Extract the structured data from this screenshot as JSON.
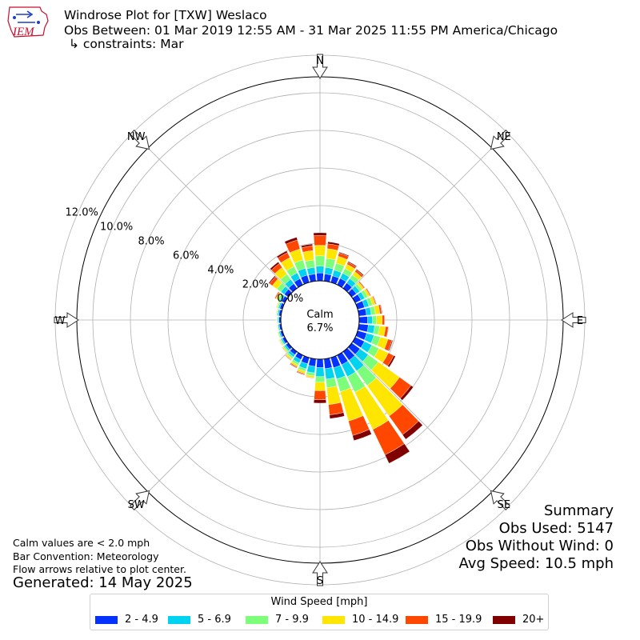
{
  "header": {
    "title": "Windrose Plot for [TXW] Weslaco",
    "subtitle": "Obs Between: 01 Mar 2019 12:55 AM - 31 Mar 2025 11:55 PM America/Chicago",
    "constraints": "↳ constraints: Mar",
    "logo_text": "IEM"
  },
  "notes": {
    "calm_note": "Calm values are < 2.0 mph",
    "bar_convention": "Bar Convention: Meteorology",
    "flow_arrows": "Flow arrows relative to plot center.",
    "generated": "Generated: 14 May 2025"
  },
  "summary": {
    "heading": "Summary",
    "obs_used": "Obs Used: 5147",
    "obs_without_wind": "Obs Without Wind: 0",
    "avg_speed": "Avg Speed: 10.5 mph"
  },
  "legend": {
    "title": "Wind Speed [mph]",
    "placement": "bottom-center"
  },
  "colors": {
    "bins": [
      "#0532ff",
      "#00d3f0",
      "#7dfe7a",
      "#ffe600",
      "#ff4700",
      "#800000"
    ],
    "grid": "#b0b0b0",
    "logo_red": "#c8102e",
    "logo_blue": "#1f3fbf"
  },
  "chart_data": {
    "type": "windrose",
    "calm": {
      "label": "Calm",
      "value": "6.7%"
    },
    "radial_ticks": [
      "0.0%",
      "2.0%",
      "4.0%",
      "6.0%",
      "8.0%",
      "10.0%",
      "12.0%"
    ],
    "radial_range": [
      0,
      12
    ],
    "compass_labels": [
      "N",
      "NE",
      "E",
      "SE",
      "S",
      "SW",
      "W",
      "NW"
    ],
    "direction_step_deg": 10,
    "bins": [
      "2 - 4.9",
      "5 - 6.9",
      "7 - 9.9",
      "10 - 14.9",
      "15 - 19.9",
      "20+"
    ],
    "series": [
      {
        "dir": 0,
        "values": [
          0.42,
          0.36,
          0.55,
          0.56,
          0.52,
          0.15
        ]
      },
      {
        "dir": 10,
        "values": [
          0.38,
          0.35,
          0.48,
          0.52,
          0.26,
          0.11
        ]
      },
      {
        "dir": 20,
        "values": [
          0.36,
          0.32,
          0.38,
          0.38,
          0.18,
          0.05
        ]
      },
      {
        "dir": 30,
        "values": [
          0.38,
          0.3,
          0.28,
          0.25,
          0.12,
          0.05
        ]
      },
      {
        "dir": 40,
        "values": [
          0.35,
          0.28,
          0.24,
          0.22,
          0.11,
          0.05
        ]
      },
      {
        "dir": 50,
        "values": [
          0.3,
          0.22,
          0.15,
          0.12,
          0.05,
          0.02
        ]
      },
      {
        "dir": 60,
        "values": [
          0.34,
          0.22,
          0.18,
          0.12,
          0.05,
          0.02
        ]
      },
      {
        "dir": 70,
        "values": [
          0.38,
          0.24,
          0.2,
          0.15,
          0.05,
          0.02
        ]
      },
      {
        "dir": 80,
        "values": [
          0.4,
          0.26,
          0.22,
          0.24,
          0.1,
          0.03
        ]
      },
      {
        "dir": 90,
        "values": [
          0.45,
          0.26,
          0.22,
          0.3,
          0.12,
          0.02
        ]
      },
      {
        "dir": 100,
        "values": [
          0.5,
          0.34,
          0.26,
          0.32,
          0.15,
          0.02
        ]
      },
      {
        "dir": 110,
        "values": [
          0.5,
          0.4,
          0.35,
          0.42,
          0.22,
          0.05
        ]
      },
      {
        "dir": 120,
        "values": [
          0.54,
          0.44,
          0.42,
          0.55,
          0.32,
          0.1
        ]
      },
      {
        "dir": 130,
        "values": [
          0.54,
          0.54,
          0.65,
          1.4,
          0.75,
          0.15
        ]
      },
      {
        "dir": 140,
        "values": [
          0.56,
          0.7,
          0.95,
          2.0,
          1.22,
          0.3
        ]
      },
      {
        "dir": 150,
        "values": [
          0.56,
          0.7,
          0.92,
          2.2,
          1.5,
          0.5
        ]
      },
      {
        "dir": 160,
        "values": [
          0.56,
          0.62,
          0.7,
          1.62,
          0.8,
          0.28
        ]
      },
      {
        "dir": 170,
        "values": [
          0.52,
          0.56,
          0.46,
          0.9,
          0.55,
          0.2
        ]
      },
      {
        "dir": 180,
        "values": [
          0.45,
          0.48,
          0.3,
          0.45,
          0.48,
          0.18
        ]
      },
      {
        "dir": 190,
        "values": [
          0.4,
          0.35,
          0.16,
          0.1,
          0.03,
          0.01
        ]
      },
      {
        "dir": 200,
        "values": [
          0.34,
          0.28,
          0.14,
          0.12,
          0.05,
          0.03
        ]
      },
      {
        "dir": 210,
        "values": [
          0.26,
          0.2,
          0.12,
          0.1,
          0.05,
          0.03
        ]
      },
      {
        "dir": 220,
        "values": [
          0.2,
          0.14,
          0.1,
          0.08,
          0.03,
          0.02
        ]
      },
      {
        "dir": 230,
        "values": [
          0.16,
          0.1,
          0.08,
          0.05,
          0.02,
          0.01
        ]
      },
      {
        "dir": 240,
        "values": [
          0.14,
          0.08,
          0.06,
          0.04,
          0.02,
          0.01
        ]
      },
      {
        "dir": 250,
        "values": [
          0.12,
          0.07,
          0.05,
          0.03,
          0.01,
          0.0
        ]
      },
      {
        "dir": 260,
        "values": [
          0.1,
          0.06,
          0.04,
          0.02,
          0.01,
          0.0
        ]
      },
      {
        "dir": 270,
        "values": [
          0.1,
          0.06,
          0.04,
          0.02,
          0.01,
          0.0
        ]
      },
      {
        "dir": 280,
        "values": [
          0.12,
          0.07,
          0.05,
          0.03,
          0.01,
          0.0
        ]
      },
      {
        "dir": 290,
        "values": [
          0.14,
          0.08,
          0.06,
          0.04,
          0.02,
          0.01
        ]
      },
      {
        "dir": 300,
        "values": [
          0.18,
          0.12,
          0.1,
          0.12,
          0.06,
          0.02
        ]
      },
      {
        "dir": 310,
        "values": [
          0.26,
          0.22,
          0.26,
          0.3,
          0.18,
          0.06
        ]
      },
      {
        "dir": 320,
        "values": [
          0.3,
          0.28,
          0.34,
          0.44,
          0.26,
          0.1
        ]
      },
      {
        "dir": 330,
        "values": [
          0.36,
          0.34,
          0.38,
          0.52,
          0.3,
          0.1
        ]
      },
      {
        "dir": 340,
        "values": [
          0.4,
          0.38,
          0.46,
          0.6,
          0.5,
          0.15
        ]
      },
      {
        "dir": 350,
        "values": [
          0.38,
          0.35,
          0.4,
          0.5,
          0.25,
          0.1
        ]
      }
    ]
  }
}
